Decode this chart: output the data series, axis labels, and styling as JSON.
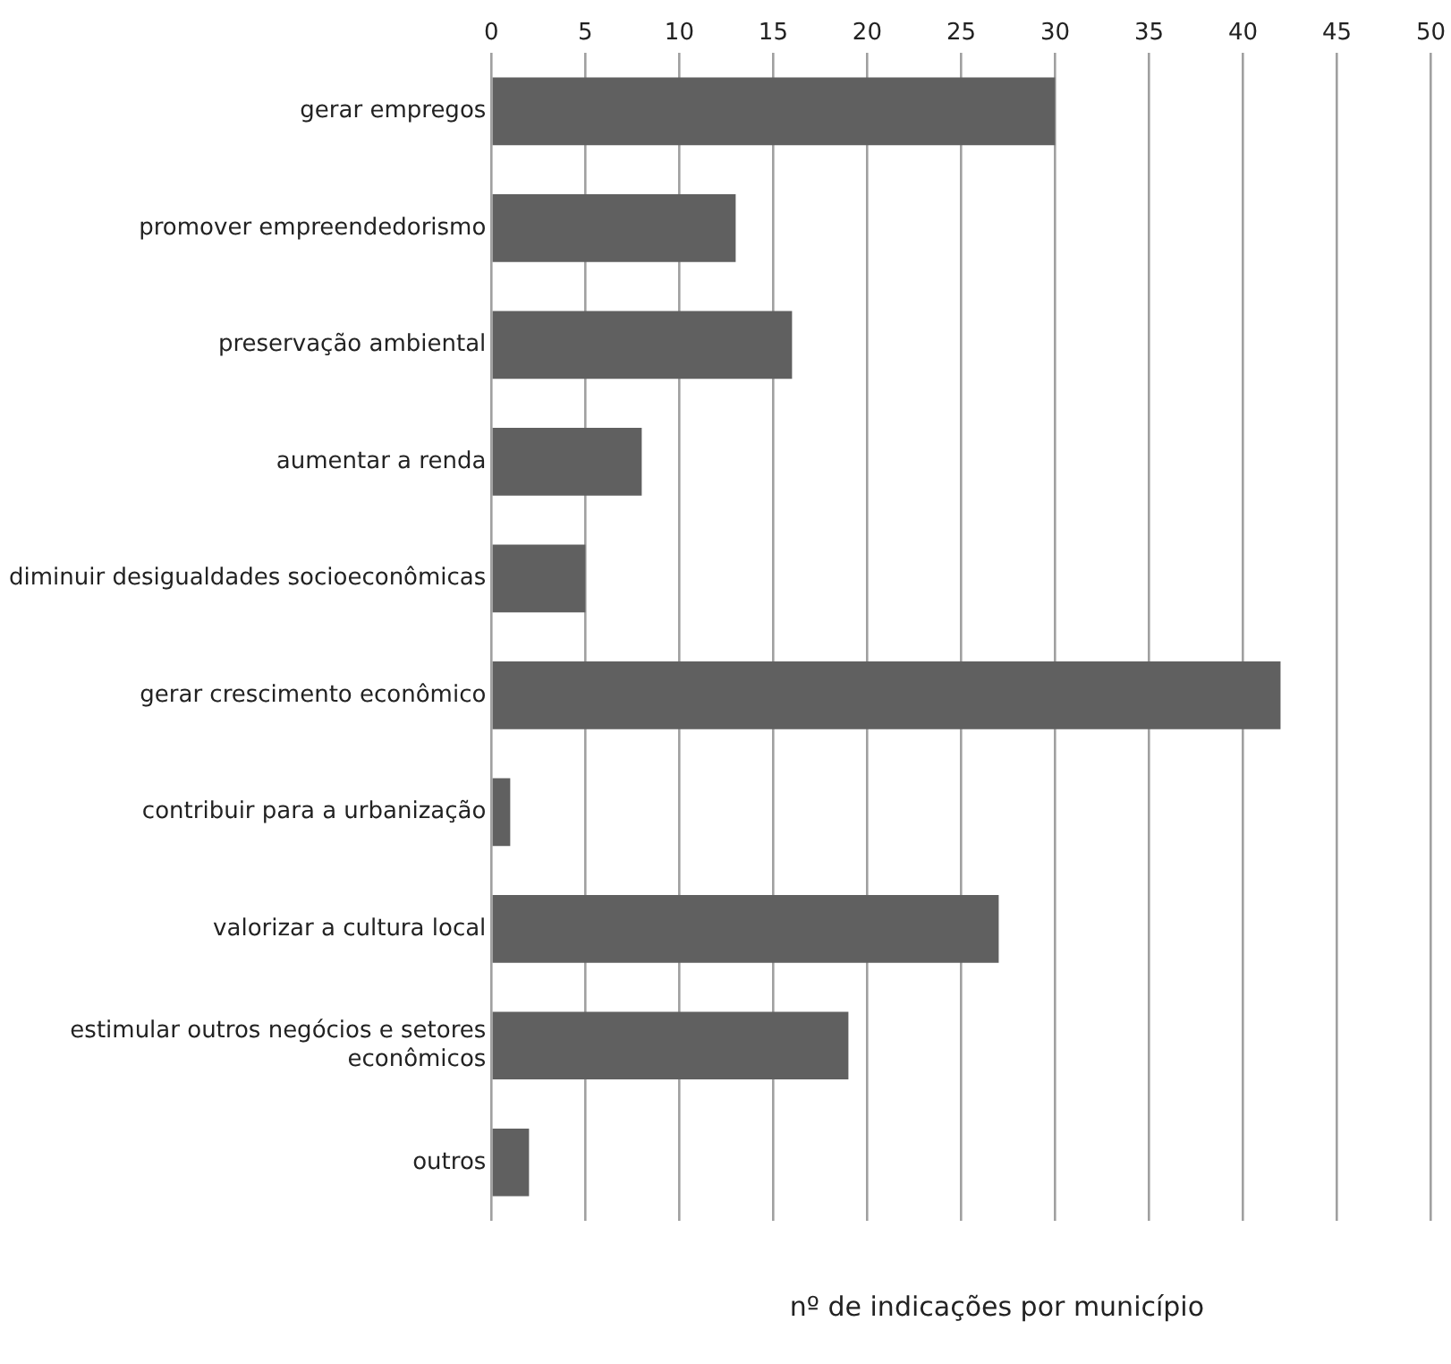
{
  "chart_data": {
    "type": "bar",
    "orientation": "horizontal",
    "xlabel": "nº de indicações por município",
    "categories": [
      "gerar empregos",
      "promover empreendedorismo",
      "preservação ambiental",
      "aumentar a renda",
      "diminuir desigualdades socioeconômicas",
      "gerar crescimento econômico",
      "contribuir para a urbanização",
      "valorizar a cultura local",
      "estimular outros negócios e setores econômicos",
      "outros"
    ],
    "values": [
      30,
      13,
      16,
      8,
      5,
      42,
      1,
      27,
      19,
      2
    ],
    "color": "#606060",
    "xlim": [
      0,
      50
    ],
    "xticks": [
      0,
      5,
      10,
      15,
      20,
      25,
      30,
      35,
      40,
      45,
      50
    ],
    "grid": "x",
    "legend": false
  }
}
